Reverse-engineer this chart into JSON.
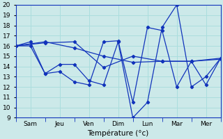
{
  "background_color": "#cce9e9",
  "grid_color": "#aadddd",
  "line_color": "#1133bb",
  "xlabel": "Température (°c)",
  "ylim": [
    9,
    20
  ],
  "xlim": [
    0,
    14
  ],
  "day_labels": [
    "Sam",
    "Jeu",
    "Ven",
    "Dim",
    "Lun",
    "Mar",
    "Mer"
  ],
  "day_positions": [
    1,
    3,
    5,
    7,
    9,
    11,
    13
  ],
  "series_A_x": [
    0,
    2,
    4,
    6,
    8,
    10,
    12,
    14
  ],
  "series_A_y": [
    16.0,
    16.4,
    15.8,
    15.0,
    14.4,
    14.5,
    14.5,
    14.8
  ],
  "series_B_x": [
    0,
    2,
    4,
    6,
    8,
    10,
    12,
    14
  ],
  "series_B_y": [
    16.0,
    16.3,
    16.4,
    13.9,
    15.0,
    14.5,
    14.5,
    14.7
  ],
  "series_C_x": [
    0,
    1,
    2,
    3,
    4,
    5,
    6,
    7,
    8,
    9,
    10,
    11,
    12,
    13,
    14
  ],
  "series_C_y": [
    16.0,
    16.4,
    13.3,
    14.2,
    14.2,
    12.6,
    12.2,
    16.4,
    9.0,
    10.5,
    17.8,
    20.0,
    12.0,
    13.0,
    14.8
  ],
  "series_D_x": [
    0,
    1,
    2,
    3,
    4,
    5,
    6,
    7,
    8,
    9,
    10,
    11,
    12,
    13,
    14
  ],
  "series_D_y": [
    16.0,
    16.0,
    13.3,
    13.5,
    12.5,
    12.2,
    16.4,
    16.5,
    10.5,
    17.8,
    17.5,
    12.0,
    14.5,
    12.2,
    14.8
  ]
}
